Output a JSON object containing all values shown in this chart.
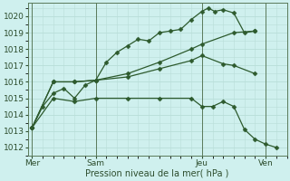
{
  "background_color": "#cff0ee",
  "grid_color": "#b8ddd8",
  "line_color": "#2d5a2d",
  "marker_color": "#2d5a2d",
  "xlabel": "Pression niveau de la mer( hPa )",
  "ylim": [
    1011.5,
    1020.8
  ],
  "yticks": [
    1012,
    1013,
    1014,
    1015,
    1016,
    1017,
    1018,
    1019,
    1020
  ],
  "xtick_labels": [
    "Mer",
    "Sam",
    "Jeu",
    "Ven"
  ],
  "xtick_positions": [
    0,
    3,
    8,
    11
  ],
  "vline_positions": [
    0,
    3,
    8,
    11
  ],
  "series": [
    {
      "x": [
        0,
        0.5,
        1.0,
        1.5,
        2.0,
        2.5,
        3.0,
        3.5,
        4.0,
        4.5,
        5.0,
        5.5,
        6.0,
        6.5,
        7.0,
        7.5,
        8.0,
        8.3,
        8.6,
        9.0,
        9.5,
        10.0,
        10.5
      ],
      "y": [
        1013.2,
        1014.5,
        1015.3,
        1015.6,
        1015.0,
        1015.8,
        1016.1,
        1017.2,
        1017.8,
        1018.2,
        1018.6,
        1018.5,
        1019.0,
        1019.1,
        1019.2,
        1019.8,
        1020.3,
        1020.5,
        1020.3,
        1020.4,
        1020.2,
        1019.0,
        1019.1
      ]
    },
    {
      "x": [
        0,
        1.0,
        2.0,
        3.0,
        4.5,
        6.0,
        7.5,
        8.0,
        9.5,
        10.5
      ],
      "y": [
        1013.2,
        1016.0,
        1016.0,
        1016.1,
        1016.5,
        1017.2,
        1018.0,
        1018.3,
        1019.0,
        1019.1
      ]
    },
    {
      "x": [
        0,
        1.0,
        2.0,
        3.0,
        4.5,
        6.0,
        7.5,
        8.0,
        9.0,
        9.5,
        10.5
      ],
      "y": [
        1013.2,
        1016.0,
        1016.0,
        1016.1,
        1016.3,
        1016.8,
        1017.3,
        1017.6,
        1017.1,
        1017.0,
        1016.5
      ]
    },
    {
      "x": [
        0,
        1.0,
        2.0,
        3.0,
        4.5,
        6.0,
        7.5,
        8.0,
        8.5,
        9.0,
        9.5,
        10.0,
        10.5,
        11.0,
        11.5
      ],
      "y": [
        1013.2,
        1015.0,
        1014.8,
        1015.0,
        1015.0,
        1015.0,
        1015.0,
        1014.5,
        1014.5,
        1014.8,
        1014.5,
        1013.1,
        1012.5,
        1012.2,
        1012.0
      ]
    }
  ]
}
